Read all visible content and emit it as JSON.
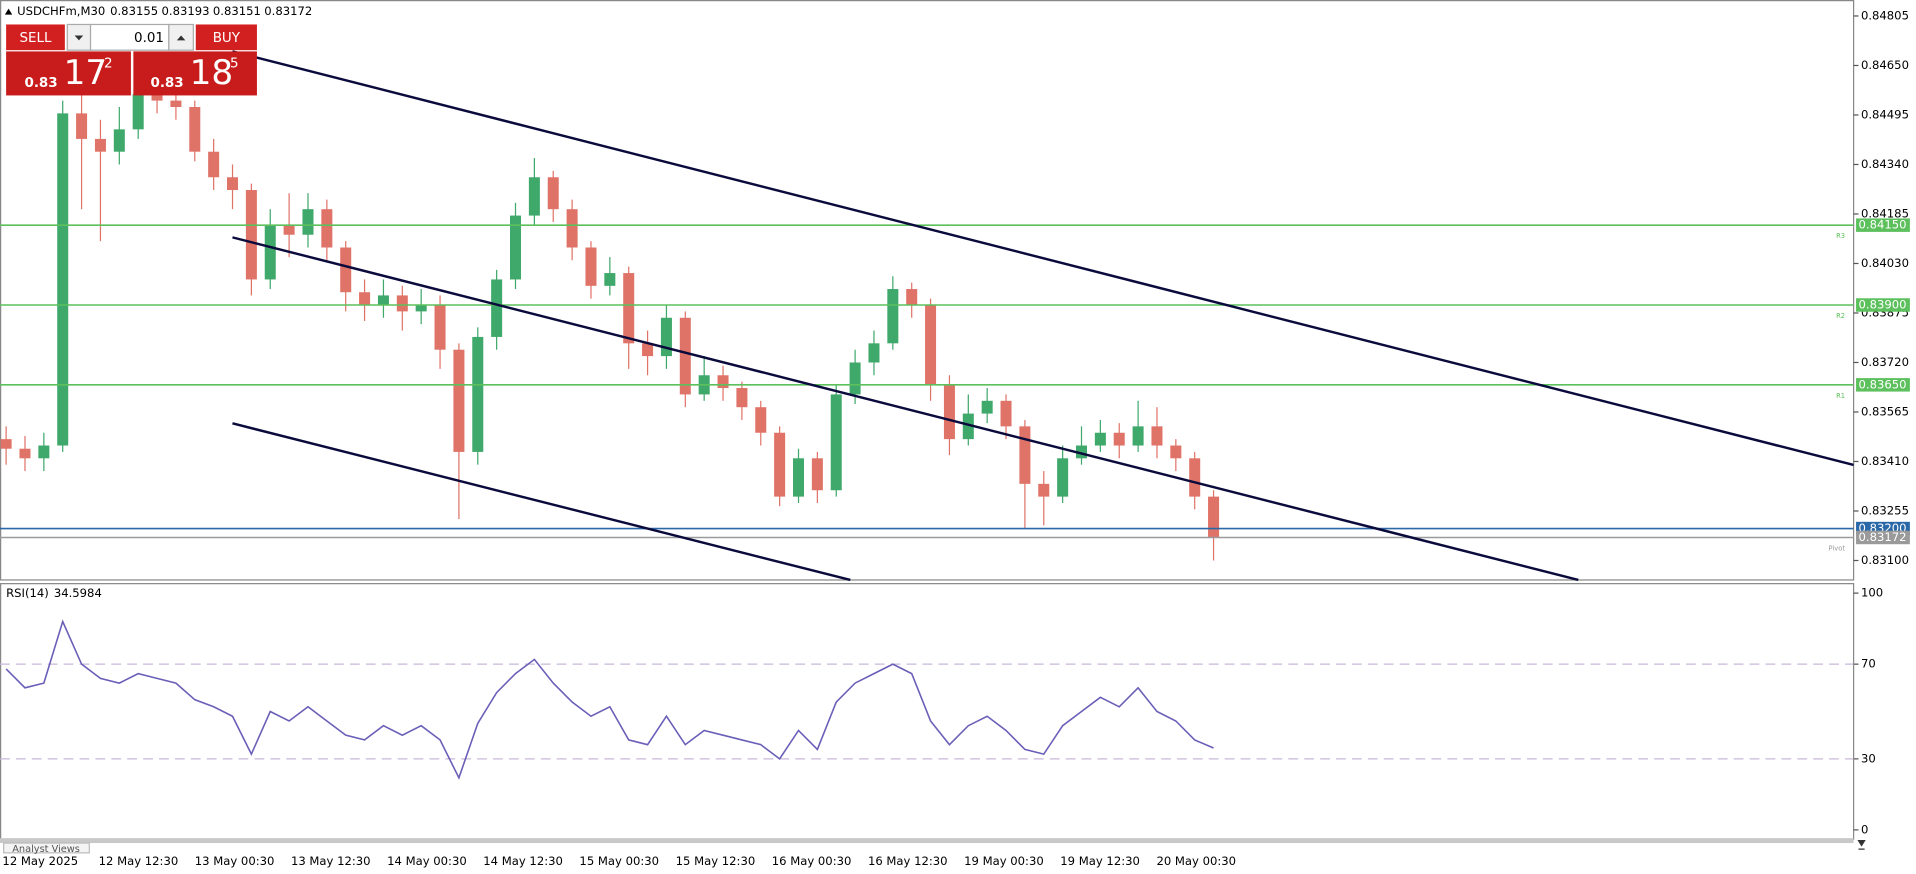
{
  "header": {
    "symbol": "USDCHFm,M30",
    "ohlc": [
      0.83155,
      0.83193,
      0.83151,
      0.83172
    ]
  },
  "trade_panel": {
    "sell": "SELL",
    "buy": "BUY",
    "volume": 0.01,
    "bid": {
      "big": 0.83,
      "main": 17,
      "small": 2
    },
    "ask": {
      "big": 0.83,
      "main": 18,
      "small": 5
    }
  },
  "chart_data": [
    {
      "type": "candlestick",
      "up_color": "#3fa86b",
      "down_color": "#e07368",
      "open": [
        0.8348,
        0.8345,
        0.8342,
        0.8346,
        0.845,
        0.8442,
        0.8438,
        0.8445,
        0.8456,
        0.8454,
        0.8452,
        0.8438,
        0.843,
        0.8426,
        0.8398,
        0.8415,
        0.8412,
        0.842,
        0.8408,
        0.8394,
        0.839,
        0.8393,
        0.8388,
        0.839,
        0.8376,
        0.8344,
        0.838,
        0.8398,
        0.8418,
        0.843,
        0.842,
        0.8408,
        0.8396,
        0.84,
        0.8378,
        0.8374,
        0.8386,
        0.8362,
        0.8368,
        0.8364,
        0.8358,
        0.835,
        0.833,
        0.8342,
        0.8332,
        0.8362,
        0.8372,
        0.8378,
        0.8395,
        0.839,
        0.8365,
        0.8348,
        0.8356,
        0.836,
        0.8352,
        0.8334,
        0.833,
        0.8342,
        0.8346,
        0.835,
        0.8346,
        0.8352,
        0.8346,
        0.8342,
        0.833
      ],
      "high": [
        0.8352,
        0.8349,
        0.835,
        0.8454,
        0.8456,
        0.8448,
        0.8452,
        0.8462,
        0.846,
        0.8457,
        0.8454,
        0.8442,
        0.8434,
        0.8428,
        0.842,
        0.8425,
        0.8425,
        0.8423,
        0.841,
        0.8398,
        0.8398,
        0.8396,
        0.8395,
        0.8393,
        0.8378,
        0.8383,
        0.8401,
        0.8422,
        0.8436,
        0.8432,
        0.8423,
        0.841,
        0.8405,
        0.8402,
        0.8382,
        0.839,
        0.8388,
        0.8374,
        0.8371,
        0.8366,
        0.836,
        0.8352,
        0.8345,
        0.8344,
        0.8365,
        0.8376,
        0.8382,
        0.8399,
        0.8397,
        0.8392,
        0.8368,
        0.8362,
        0.8364,
        0.8362,
        0.8354,
        0.8338,
        0.8346,
        0.8352,
        0.8354,
        0.8353,
        0.836,
        0.8358,
        0.8348,
        0.8344,
        0.8332
      ],
      "low": [
        0.834,
        0.8338,
        0.8338,
        0.8344,
        0.842,
        0.841,
        0.8434,
        0.8442,
        0.845,
        0.8448,
        0.8435,
        0.8426,
        0.842,
        0.8393,
        0.8395,
        0.8405,
        0.8408,
        0.8404,
        0.8388,
        0.8385,
        0.8386,
        0.8382,
        0.8384,
        0.837,
        0.8323,
        0.834,
        0.8376,
        0.8395,
        0.8415,
        0.8416,
        0.8404,
        0.8392,
        0.8393,
        0.837,
        0.8368,
        0.837,
        0.8358,
        0.836,
        0.836,
        0.8354,
        0.8346,
        0.8327,
        0.8328,
        0.8328,
        0.833,
        0.8359,
        0.8368,
        0.8376,
        0.8386,
        0.836,
        0.8343,
        0.8346,
        0.8353,
        0.8348,
        0.832,
        0.8321,
        0.8328,
        0.834,
        0.8344,
        0.8342,
        0.8344,
        0.8342,
        0.8338,
        0.8326,
        0.831
      ],
      "close": [
        0.8345,
        0.8342,
        0.8346,
        0.845,
        0.8442,
        0.8438,
        0.8445,
        0.8456,
        0.8454,
        0.8452,
        0.8438,
        0.843,
        0.8426,
        0.8398,
        0.8415,
        0.8412,
        0.842,
        0.8408,
        0.8394,
        0.839,
        0.8393,
        0.8388,
        0.839,
        0.8376,
        0.8344,
        0.838,
        0.8398,
        0.8418,
        0.843,
        0.842,
        0.8408,
        0.8396,
        0.84,
        0.8378,
        0.8374,
        0.8386,
        0.8362,
        0.8368,
        0.8364,
        0.8358,
        0.835,
        0.833,
        0.8342,
        0.8332,
        0.8362,
        0.8372,
        0.8378,
        0.8395,
        0.839,
        0.8365,
        0.8348,
        0.8356,
        0.836,
        0.8352,
        0.8334,
        0.833,
        0.8342,
        0.8346,
        0.835,
        0.8346,
        0.8352,
        0.8346,
        0.8342,
        0.833,
        0.83172
      ],
      "ylim": [
        0.83039,
        0.84855
      ],
      "yticks": [
        0.84805,
        {
          "value": 0.8465,
          "label": "0.84650"
        },
        0.84495,
        {
          "value": 0.8434,
          "label": "0.84340"
        },
        0.84185,
        {
          "value": 0.8403,
          "label": "0.84030"
        },
        0.83875,
        {
          "value": 0.8372,
          "label": "0.83720"
        },
        0.83565,
        {
          "value": 0.8341,
          "label": "0.83410"
        },
        0.83255,
        {
          "value": 0.831,
          "label": "0.83100"
        }
      ],
      "levels": [
        {
          "value": 0.8415,
          "label": "0.84150",
          "name": "R3",
          "color": "#5cc05c"
        },
        {
          "value": 0.839,
          "label": "0.83900",
          "name": "R2",
          "color": "#5cc05c"
        },
        {
          "value": 0.8365,
          "label": "0.83650",
          "name": "R1",
          "color": "#5cc05c"
        },
        {
          "value": 0.832,
          "label": "0.83200",
          "color": "#2a68a8"
        },
        {
          "value": 0.83172,
          "name": "Pivot",
          "color": "#9a9a9a"
        }
      ]
    },
    {
      "type": "line",
      "title": "RSI(14)",
      "color": "#6a5fb8",
      "values": [
        68,
        60,
        62,
        88,
        70,
        64,
        62,
        66,
        64,
        62,
        55,
        52,
        48,
        32,
        50,
        46,
        52,
        46,
        40,
        38,
        44,
        40,
        44,
        38,
        22,
        45,
        58,
        66,
        72,
        62,
        54,
        48,
        52,
        38,
        36,
        48,
        36,
        42,
        40,
        38,
        36,
        30,
        42,
        34,
        54,
        62,
        66,
        70,
        66,
        46,
        36,
        44,
        48,
        42,
        34,
        32,
        44,
        50,
        56,
        52,
        60,
        50,
        46,
        38,
        34.5984
      ],
      "ylim": [
        -4,
        104
      ],
      "yticks": [
        100,
        70,
        30,
        0
      ],
      "levels": [
        70,
        30
      ]
    }
  ],
  "time_labels": [
    "12 May 2025",
    "12 May 12:30",
    "13 May 00:30",
    "13 May 12:30",
    "14 May 00:30",
    "14 May 12:30",
    "15 May 00:30",
    "15 May 12:30",
    "16 May 00:30",
    "16 May 12:30",
    "19 May 00:30",
    "19 May 12:30",
    "20 May 00:30"
  ],
  "footer": {
    "tab": "Analyst Views"
  }
}
